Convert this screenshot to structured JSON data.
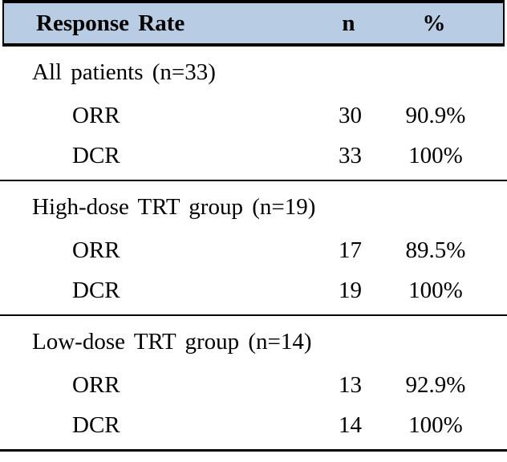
{
  "table": {
    "title": "Response Rate table",
    "header": {
      "col1": "Response Rate",
      "col2": "n",
      "col3": "%"
    },
    "sections": [
      {
        "group_label": "All patients (n=33)",
        "rows": [
          {
            "label": "ORR",
            "n": "30",
            "pct": "90.9%"
          },
          {
            "label": "DCR",
            "n": "33",
            "pct": "100%"
          }
        ]
      },
      {
        "group_label": "High-dose TRT group (n=19)",
        "rows": [
          {
            "label": "ORR",
            "n": "17",
            "pct": "89.5%"
          },
          {
            "label": "DCR",
            "n": "19",
            "pct": "100%"
          }
        ]
      },
      {
        "group_label": "Low-dose TRT group (n=14)",
        "rows": [
          {
            "label": "ORR",
            "n": "13",
            "pct": "92.9%"
          },
          {
            "label": "DCR",
            "n": "14",
            "pct": "100%"
          }
        ]
      }
    ],
    "colors": {
      "header_bg": "#b8cce4",
      "border": "#000000",
      "text": "#000000",
      "page_bg": "#ffffff"
    }
  },
  "chart_data": {
    "type": "table",
    "title": "Response Rate",
    "columns": [
      "Response Rate",
      "n",
      "%"
    ],
    "rows": [
      [
        "All patients (n=33)",
        "",
        ""
      ],
      [
        "ORR",
        "30",
        "90.9%"
      ],
      [
        "DCR",
        "33",
        "100%"
      ],
      [
        "High-dose TRT group (n=19)",
        "",
        ""
      ],
      [
        "ORR",
        "17",
        "89.5%"
      ],
      [
        "DCR",
        "19",
        "100%"
      ],
      [
        "Low-dose TRT group (n=14)",
        "",
        ""
      ],
      [
        "ORR",
        "13",
        "92.9%"
      ],
      [
        "DCR",
        "14",
        "100%"
      ]
    ]
  }
}
